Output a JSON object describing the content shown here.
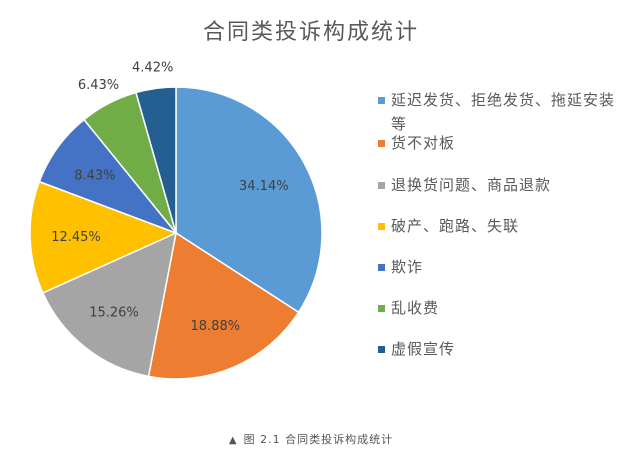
{
  "chart_data": {
    "type": "pie",
    "title": "合同类投诉构成统计",
    "slices": [
      {
        "label": "延迟发货、拒绝发货、拖延安装等",
        "value": 34.14,
        "text": "34.14%",
        "color": "#5B9BD5"
      },
      {
        "label": "货不对板",
        "value": 18.88,
        "text": "18.88%",
        "color": "#ED7D31"
      },
      {
        "label": "退换货问题、商品退款",
        "value": 15.26,
        "text": "15.26%",
        "color": "#A5A5A5"
      },
      {
        "label": "破产、跑路、失联",
        "value": 12.45,
        "text": "12.45%",
        "color": "#FFC000"
      },
      {
        "label": "欺诈",
        "value": 8.43,
        "text": "8.43%",
        "color": "#4472C4"
      },
      {
        "label": "乱收费",
        "value": 6.43,
        "text": "6.43%",
        "color": "#70AD47"
      },
      {
        "label": "虚假宣传",
        "value": 4.42,
        "text": "4.42%",
        "color": "#255E91"
      }
    ],
    "legend_position": "right"
  },
  "caption": {
    "marker": "▲",
    "text": "图 2.1   合同类投诉构成统计"
  }
}
